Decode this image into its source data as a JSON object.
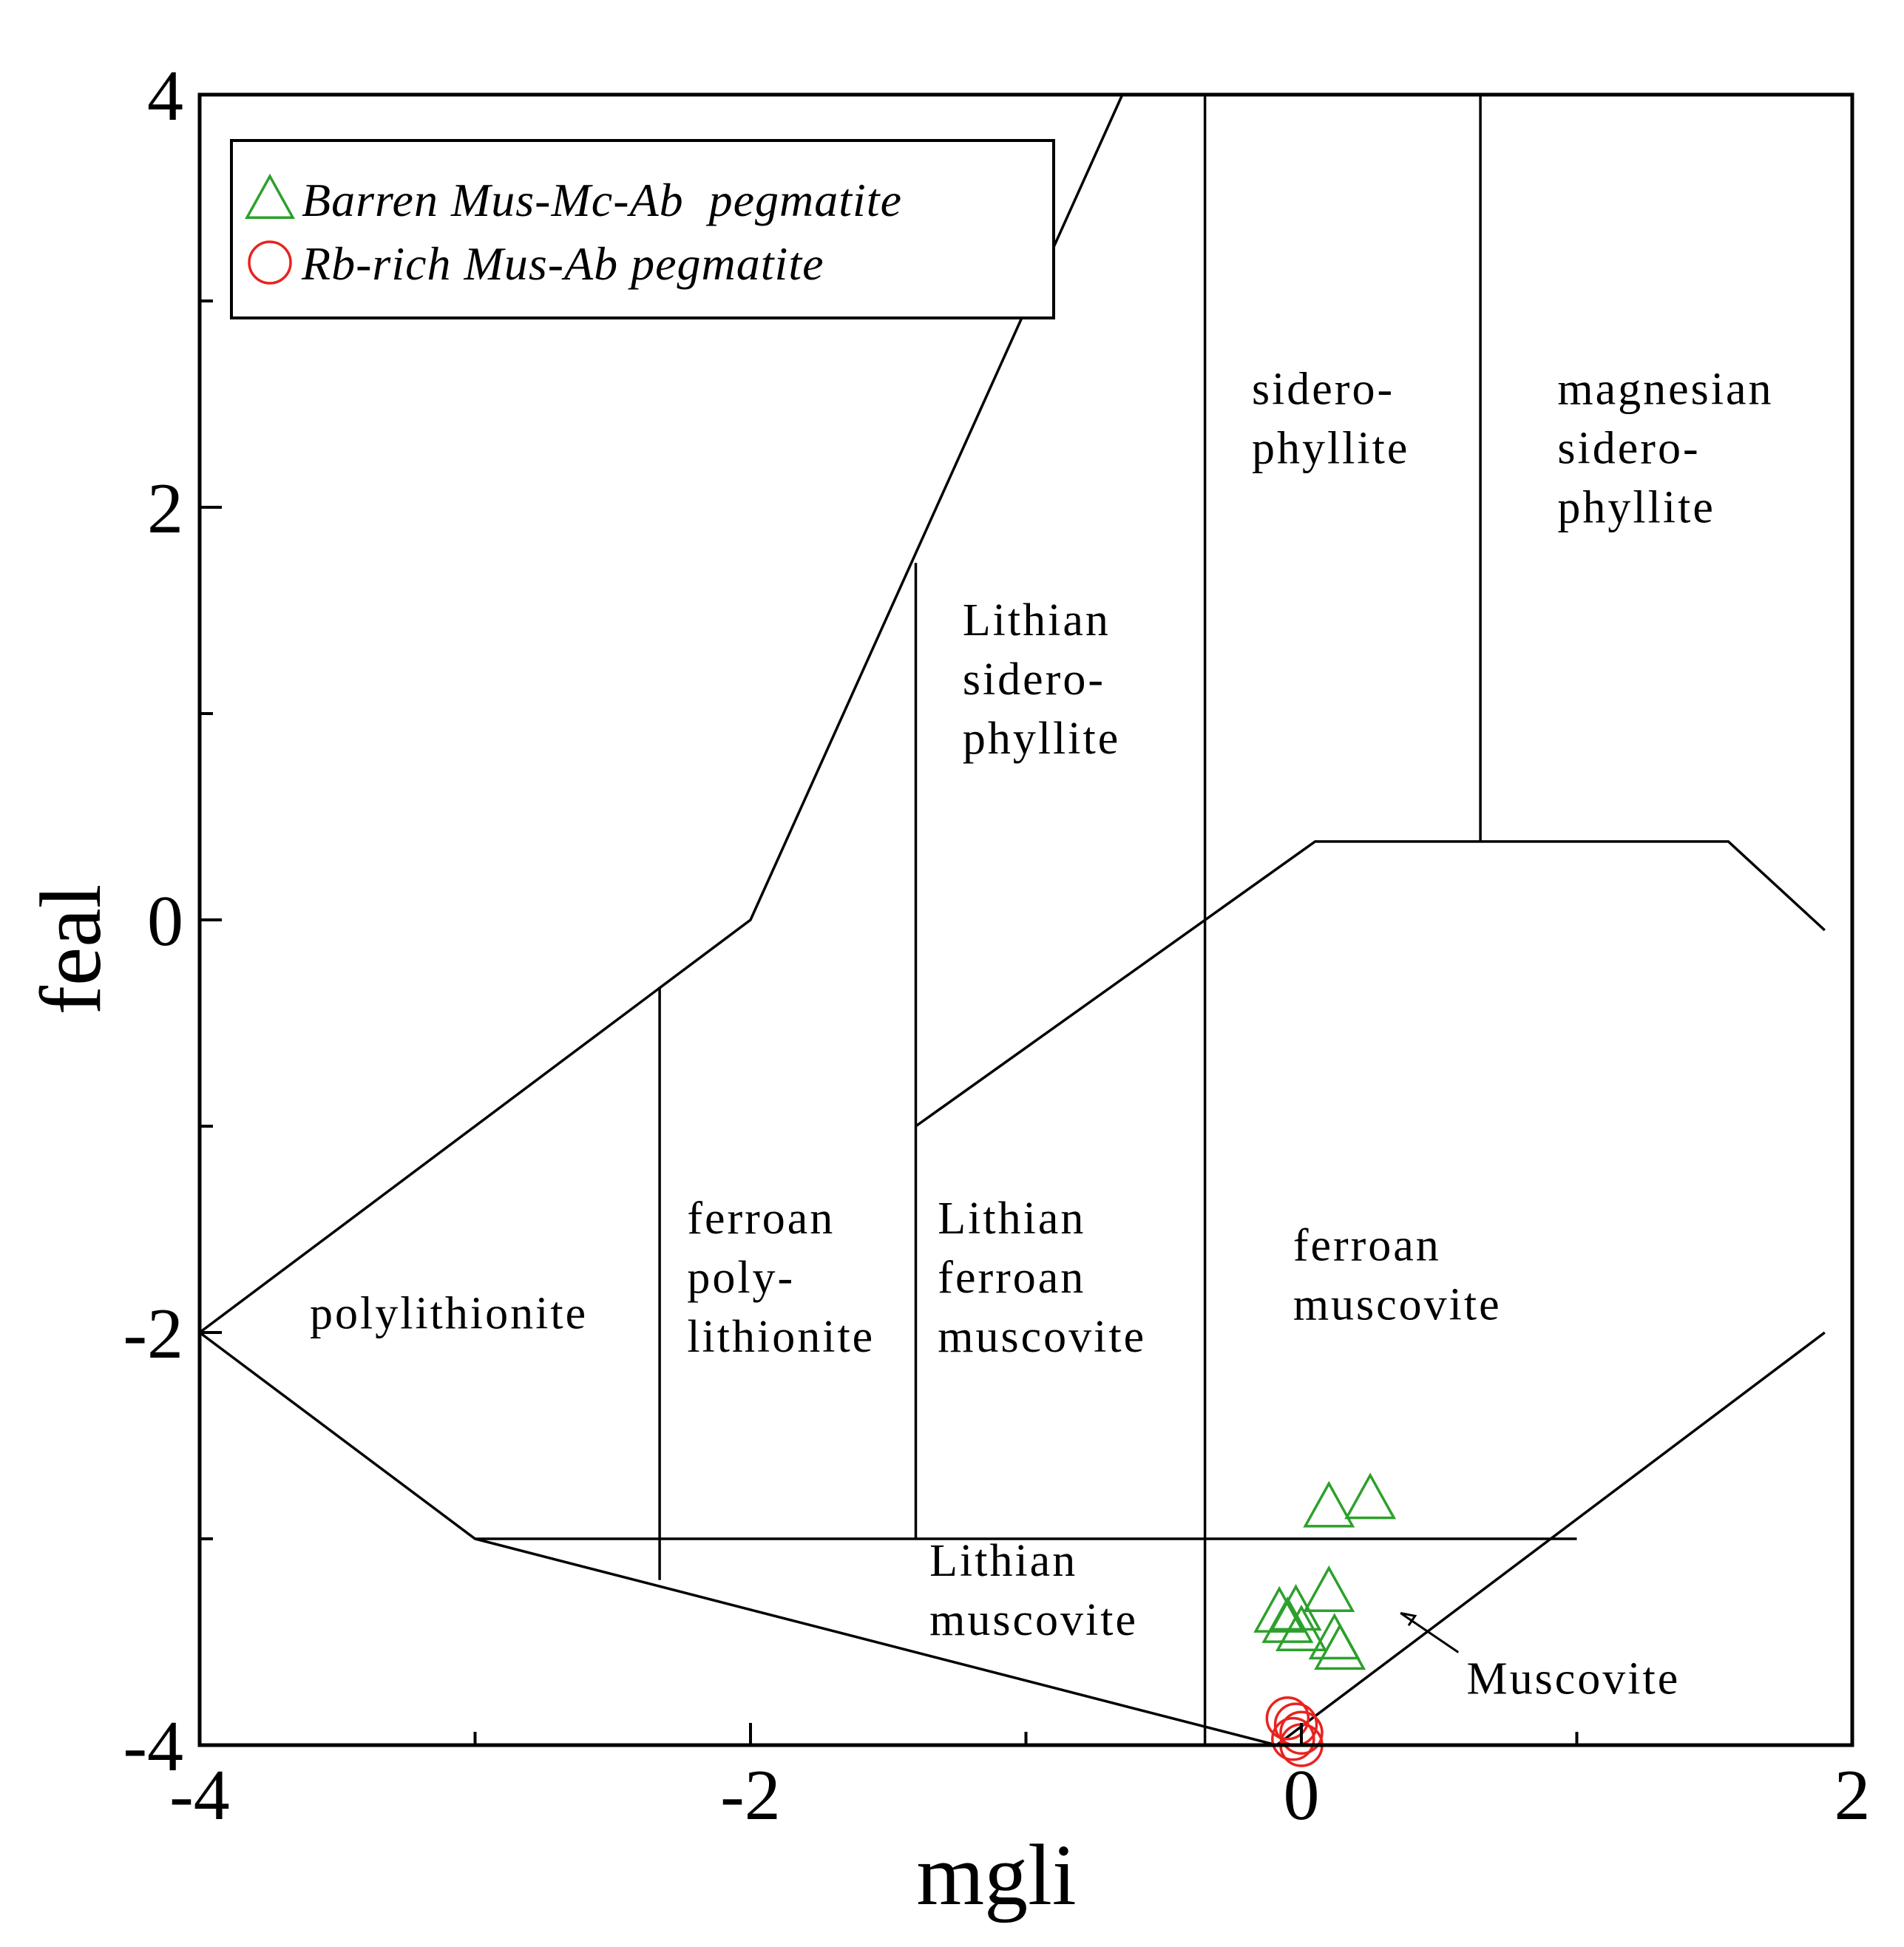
{
  "chart_data": {
    "type": "scatter",
    "title": "",
    "xlabel": "mgli",
    "ylabel": "feal",
    "xlim": [
      -4,
      2
    ],
    "ylim": [
      -4,
      4
    ],
    "xticks": [
      "-4",
      "-2",
      "0",
      "2"
    ],
    "yticks": [
      "4",
      "2",
      "0",
      "-2",
      "-4"
    ],
    "legend_position": "top-left",
    "legend": [
      {
        "label": "Barren Mus-Mc-Ab  pegmatite",
        "marker": "triangle",
        "color": "#2ca02c"
      },
      {
        "label": "Rb-rich Mus-Ab pegmatite",
        "marker": "circle",
        "color": "#e8231f"
      }
    ],
    "series": [
      {
        "name": "Barren Mus-Mc-Ab  pegmatite",
        "marker": "triangle",
        "color": "#2ca02c",
        "points": [
          {
            "x": 0.1,
            "y": -2.86
          },
          {
            "x": 0.25,
            "y": -2.82
          },
          {
            "x": 0.1,
            "y": -3.27
          },
          {
            "x": -0.08,
            "y": -3.37
          },
          {
            "x": -0.05,
            "y": -3.42
          },
          {
            "x": 0.0,
            "y": -3.46
          },
          {
            "x": -0.02,
            "y": -3.36
          },
          {
            "x": 0.12,
            "y": -3.5
          },
          {
            "x": 0.14,
            "y": -3.55
          }
        ]
      },
      {
        "name": "Rb-rich Mus-Ab pegmatite",
        "marker": "circle",
        "color": "#e8231f",
        "points": [
          {
            "x": -0.05,
            "y": -3.87
          },
          {
            "x": -0.02,
            "y": -3.9
          },
          {
            "x": 0.0,
            "y": -3.94
          },
          {
            "x": -0.03,
            "y": -3.97
          },
          {
            "x": 0.0,
            "y": -4.0
          }
        ]
      }
    ],
    "field_labels": [
      {
        "lines": [
          "sidero-",
          "phyllite"
        ],
        "x": -0.18,
        "y": 2.5
      },
      {
        "lines": [
          "magnesian",
          "sidero-",
          "phyllite"
        ],
        "x": 0.93,
        "y": 2.5
      },
      {
        "lines": [
          "Lithian",
          "sidero-",
          "phyllite"
        ],
        "x": -1.23,
        "y": 1.38
      },
      {
        "lines": [
          "polylithionite"
        ],
        "x": -3.6,
        "y": -1.98
      },
      {
        "lines": [
          "ferroan",
          "poly-",
          "lithionite"
        ],
        "x": -2.23,
        "y": -1.52
      },
      {
        "lines": [
          "Lithian",
          "ferroan",
          "muscovite"
        ],
        "x": -1.32,
        "y": -1.52
      },
      {
        "lines": [
          "ferroan",
          "muscovite"
        ],
        "x": -0.03,
        "y": -1.65
      },
      {
        "lines": [
          "Lithian",
          "muscovite"
        ],
        "x": -1.35,
        "y": -3.18
      }
    ],
    "annotation": {
      "text": "Muscovite",
      "arrow_from": {
        "x": 0.57,
        "y": -3.55
      },
      "arrow_to": {
        "x": 0.36,
        "y": -3.36
      },
      "x": 0.6,
      "y": -3.75
    },
    "boundaries": [
      [
        [
          -4,
          -2
        ],
        [
          -3,
          -3
        ],
        [
          -0.09,
          -4
        ],
        [
          1.9,
          -2
        ]
      ],
      [
        [
          -3,
          -3
        ],
        [
          1.0,
          -3
        ]
      ],
      [
        [
          -4,
          -2
        ],
        [
          -2,
          0
        ],
        [
          -0.65,
          4
        ]
      ],
      [
        [
          -2.33,
          -0.33
        ],
        [
          -2.33,
          -3.2
        ]
      ],
      [
        [
          -1.4,
          1.73
        ],
        [
          -1.4,
          -3
        ]
      ],
      [
        [
          -0.35,
          4
        ],
        [
          -0.35,
          -4
        ]
      ],
      [
        [
          0.65,
          4
        ],
        [
          0.65,
          0.38
        ]
      ],
      [
        [
          -1.4,
          -1.0
        ],
        [
          0.05,
          0.38
        ],
        [
          1.55,
          0.38
        ],
        [
          1.9,
          -0.05
        ]
      ]
    ]
  }
}
